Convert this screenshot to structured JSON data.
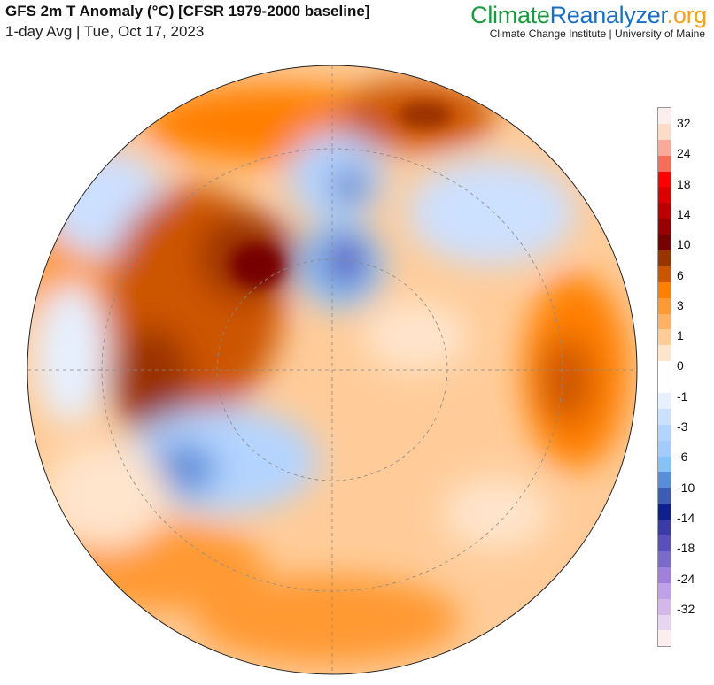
{
  "header": {
    "title": "GFS 2m T Anomaly (°C) [CFSR 1979-2000 baseline]",
    "subtitle": "1-day Avg | Tue, Oct 17, 2023"
  },
  "logo": {
    "part1": "Climate",
    "part2": "Reanalyzer",
    "part3": ".org",
    "institution": "Climate Change Institute | University of Maine"
  },
  "colorbar": {
    "labels": [
      "32",
      "24",
      "18",
      "14",
      "10",
      "6",
      "3",
      "1",
      "0",
      "-1",
      "-3",
      "-6",
      "-10",
      "-14",
      "-18",
      "-24",
      "-32"
    ],
    "colors": [
      "#fdeeee",
      "#fbdcc8",
      "#f9a99a",
      "#f86c5e",
      "#ff0000",
      "#dd0000",
      "#bb0000",
      "#990000",
      "#770000",
      "#993300",
      "#cc5500",
      "#ff7f00",
      "#ff9933",
      "#ffb266",
      "#ffcc99",
      "#ffe5cc",
      "#ffffff",
      "#ffffff",
      "#e6f0ff",
      "#cce0ff",
      "#b3d4ff",
      "#a3ccfa",
      "#88c0f8",
      "#5b8cd9",
      "#3b5bb5",
      "#0f1f8f",
      "#3a3aa8",
      "#5a50bb",
      "#7a6acc",
      "#a080dd",
      "#c0a0e6",
      "#d4b8ea",
      "#e8d5ef",
      "#fdeeee"
    ]
  }
}
